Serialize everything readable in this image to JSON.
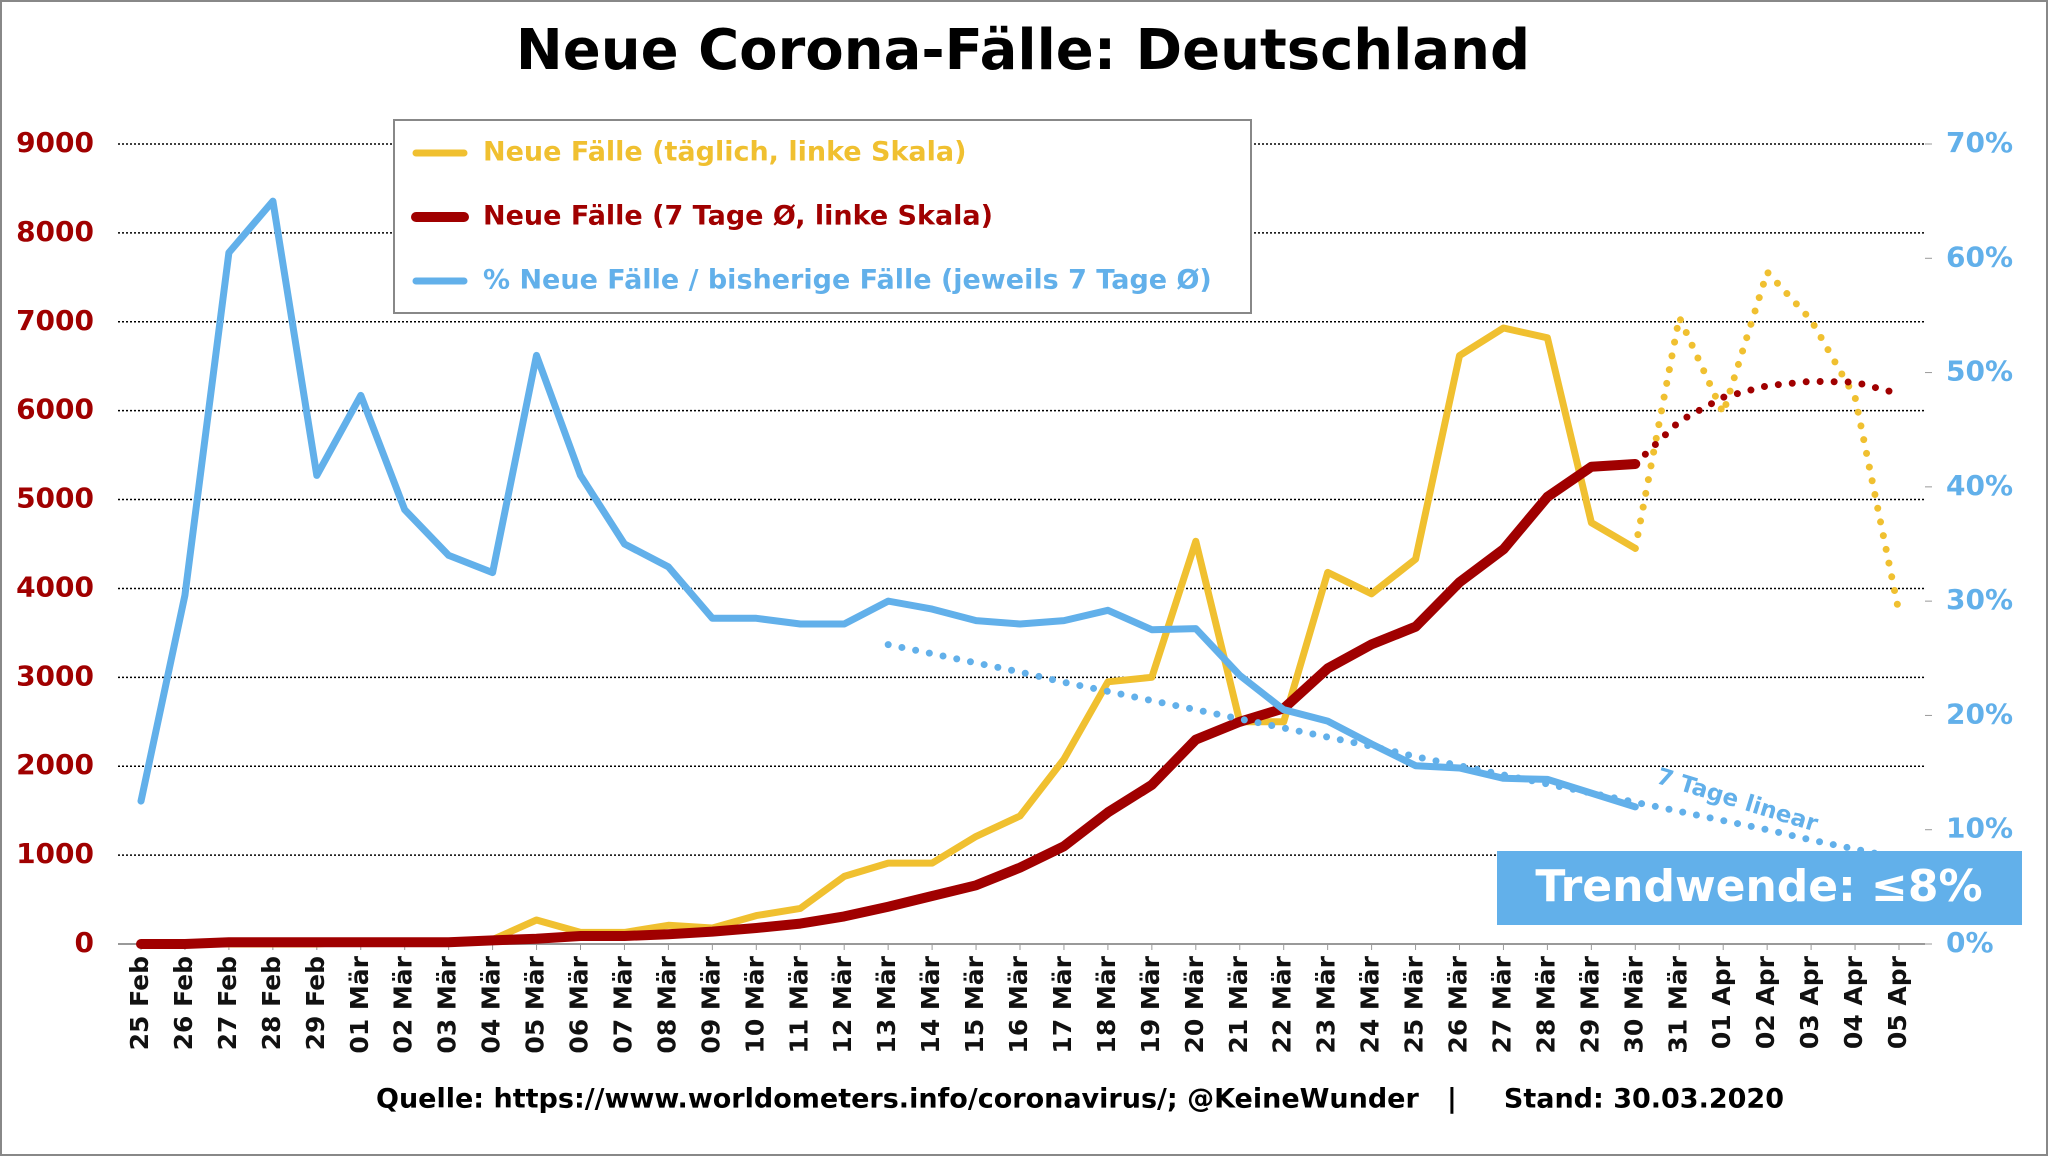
{
  "chart_data": {
    "type": "line",
    "title": "Neue Corona-Fälle: Deutschland",
    "categories": [
      "25 Feb",
      "26 Feb",
      "27 Feb",
      "28 Feb",
      "29 Feb",
      "01 Mär",
      "02 Mär",
      "03 Mär",
      "04 Mär",
      "05 Mär",
      "06 Mär",
      "07 Mär",
      "08 Mär",
      "09 Mär",
      "10 Mär",
      "11 Mär",
      "12 Mär",
      "13 Mär",
      "14 Mär",
      "15 Mär",
      "16 Mär",
      "17 Mär",
      "18 Mär",
      "19 Mär",
      "20 Mär",
      "21 Mär",
      "22 Mär",
      "23 Mär",
      "24 Mär",
      "25 Mär",
      "26 Mär",
      "27 Mär",
      "28 Mär",
      "29 Mär",
      "30 Mär",
      "31 Mär",
      "01 Apr",
      "02 Apr",
      "03 Apr",
      "04 Apr",
      "05 Apr"
    ],
    "series": [
      {
        "name": "Neue Fälle (täglich, linke Skala)",
        "color": "#f0c030",
        "style": "solid",
        "width": 7,
        "values": [
          0,
          0,
          0,
          0,
          0,
          30,
          20,
          20,
          50,
          270,
          130,
          130,
          210,
          180,
          320,
          400,
          760,
          910,
          910,
          1210,
          1440,
          2080,
          2950,
          3000,
          4530,
          2500,
          2500,
          4180,
          3940,
          4330,
          6620,
          6930,
          6820,
          4740,
          4450,
          null,
          null,
          null,
          null,
          null,
          null
        ]
      },
      {
        "color": "#f0c030",
        "style": "dotted",
        "width": 7,
        "values": [
          null,
          null,
          null,
          null,
          null,
          null,
          null,
          null,
          null,
          null,
          null,
          null,
          null,
          null,
          null,
          null,
          null,
          null,
          null,
          null,
          null,
          null,
          null,
          null,
          null,
          null,
          null,
          null,
          null,
          null,
          null,
          null,
          null,
          null,
          4450,
          7050,
          5970,
          7560,
          7020,
          6150,
          3730
        ]
      },
      {
        "name": "Neue Fälle (7 Tage Ø, linke Skala)",
        "color": "#a00000",
        "style": "solid",
        "width": 10,
        "values": [
          0,
          0,
          20,
          20,
          20,
          20,
          20,
          20,
          40,
          60,
          90,
          90,
          110,
          140,
          180,
          230,
          310,
          420,
          540,
          660,
          860,
          1100,
          1480,
          1790,
          2300,
          2500,
          2650,
          3100,
          3370,
          3570,
          4070,
          4440,
          5030,
          5370,
          5400,
          null,
          null,
          null,
          null,
          null,
          null
        ]
      },
      {
        "color": "#a00000",
        "style": "dotted",
        "width": 7,
        "values": [
          null,
          null,
          null,
          null,
          null,
          null,
          null,
          null,
          null,
          null,
          null,
          null,
          null,
          null,
          null,
          null,
          null,
          null,
          null,
          null,
          null,
          null,
          null,
          null,
          null,
          null,
          null,
          null,
          null,
          null,
          null,
          null,
          null,
          null,
          5400,
          5880,
          6150,
          6280,
          6330,
          6320,
          6190
        ]
      },
      {
        "name": "% Neue Fälle / bisherige Fälle (jeweils 7 Tage Ø)",
        "color": "#62b0ea",
        "style": "solid",
        "width": 7,
        "axis": "y2",
        "values": [
          12.5,
          30.5,
          60.5,
          65,
          41,
          48,
          38,
          34,
          32.5,
          51.5,
          41,
          35,
          33,
          28.5,
          28.5,
          28,
          28,
          30,
          29.3,
          28.3,
          28,
          28.3,
          29.2,
          27.5,
          27.6,
          23.5,
          20.5,
          19.5,
          17.5,
          15.6,
          15.4,
          14.5,
          14.4,
          13.2,
          12.0,
          null,
          null,
          null,
          null,
          null,
          null
        ]
      },
      {
        "color": "#62b0ea",
        "style": "dotted",
        "width": 7,
        "axis": "y2",
        "values": [
          null,
          null,
          null,
          null,
          null,
          null,
          null,
          null,
          null,
          null,
          null,
          null,
          null,
          null,
          null,
          null,
          null,
          26.2,
          25.4,
          24.6,
          23.8,
          22.9,
          22.1,
          21.3,
          20.5,
          19.7,
          18.9,
          18.1,
          17.3,
          16.4,
          15.6,
          14.8,
          14.0,
          13.2,
          12.4,
          11.6,
          10.8,
          10.0,
          9.1,
          8.3,
          7.5
        ]
      }
    ],
    "ylim": [
      0,
      9000
    ],
    "yticks": [
      0,
      1000,
      2000,
      3000,
      4000,
      5000,
      6000,
      7000,
      8000,
      9000
    ],
    "y2lim": [
      0,
      70
    ],
    "y2ticks": [
      {
        "value": 0,
        "label": "0%"
      },
      {
        "value": 10,
        "label": "10%"
      },
      {
        "value": 20,
        "label": "20%"
      },
      {
        "value": 30,
        "label": "30%"
      },
      {
        "value": 40,
        "label": "40%"
      },
      {
        "value": 50,
        "label": "50%"
      },
      {
        "value": 60,
        "label": "60%"
      },
      {
        "value": 70,
        "label": "70%"
      }
    ],
    "grid": true,
    "legend": "top-left",
    "annotations": [
      "7 Tage linear",
      "Trendwende: ≤8%"
    ],
    "source": "Quelle: https://www.worldometers.info/coronavirus/; @KeineWunder   |     Stand: 30.03.2020"
  }
}
